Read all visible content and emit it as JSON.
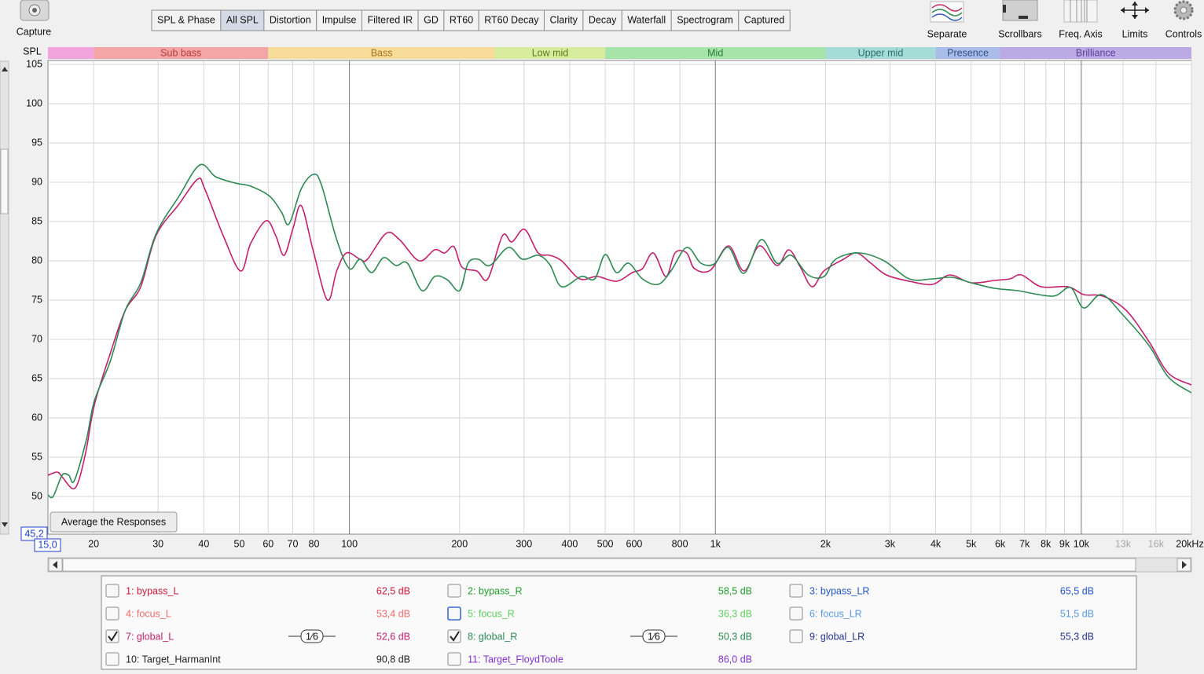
{
  "toolbar": {
    "capture": "Capture",
    "tabs": [
      "SPL & Phase",
      "All SPL",
      "Distortion",
      "Impulse",
      "Filtered IR",
      "GD",
      "RT60",
      "RT60 Decay",
      "Clarity",
      "Decay",
      "Waterfall",
      "Spectrogram",
      "Captured"
    ],
    "selected_tab": 1,
    "tools": [
      "Separate",
      "Scrollbars",
      "Freq. Axis",
      "Limits",
      "Controls"
    ]
  },
  "average_button": "Average the Responses",
  "chart_data": {
    "type": "line",
    "y_label": "SPL",
    "xscale": "log",
    "xlim": [
      15,
      20000
    ],
    "xmin_label": "15,0",
    "ylim": [
      45.2,
      105.5
    ],
    "ymin_label": "45,2",
    "grid": true,
    "yticks": [
      50,
      55,
      60,
      65,
      70,
      75,
      80,
      85,
      90,
      95,
      100,
      105
    ],
    "xticks": [
      20,
      30,
      40,
      50,
      60,
      70,
      80,
      100,
      200,
      300,
      400,
      500,
      600,
      800,
      {
        "value": 1000,
        "label": "1k"
      },
      {
        "value": 2000,
        "label": "2k"
      },
      {
        "value": 3000,
        "label": "3k"
      },
      {
        "value": 4000,
        "label": "4k"
      },
      {
        "value": 5000,
        "label": "5k"
      },
      {
        "value": 6000,
        "label": "6k"
      },
      {
        "value": 7000,
        "label": "7k"
      },
      {
        "value": 8000,
        "label": "8k"
      },
      {
        "value": 9000,
        "label": "9k"
      },
      {
        "value": 10000,
        "label": "10k"
      },
      {
        "value": 13000,
        "label": "13k",
        "dim": true
      },
      {
        "value": 16000,
        "label": "16k",
        "dim": true
      },
      {
        "value": 20000,
        "label": "20kHz"
      }
    ],
    "bands": [
      {
        "label": null,
        "from": 15,
        "to": 20,
        "color": "#f2a4dc",
        "text_color": "#a04080"
      },
      {
        "label": "Sub bass",
        "from": 20,
        "to": 60,
        "color": "#f4a6a6",
        "text_color": "#b83c3c"
      },
      {
        "label": "Bass",
        "from": 60,
        "to": 250,
        "color": "#f8dc9a",
        "text_color": "#a87020"
      },
      {
        "label": "Low mid",
        "from": 250,
        "to": 500,
        "color": "#d8eca0",
        "text_color": "#5a7a18"
      },
      {
        "label": "Mid",
        "from": 500,
        "to": 2000,
        "color": "#a6e4aa",
        "text_color": "#2a7a34"
      },
      {
        "label": "Upper mid",
        "from": 2000,
        "to": 4000,
        "color": "#a6dcd8",
        "text_color": "#2a6e6a"
      },
      {
        "label": "Presence",
        "from": 4000,
        "to": 6000,
        "color": "#aabde8",
        "text_color": "#34508a"
      },
      {
        "label": "Brilliance",
        "from": 6000,
        "to": 20000,
        "color": "#bcaae4",
        "text_color": "#5a3e96"
      }
    ],
    "series": [
      {
        "name": "1: bypass_L",
        "color": "#d01838",
        "checked": false,
        "level": {
          "value": 62.5,
          "label": "62,5 dB"
        }
      },
      {
        "name": "2: bypass_R",
        "color": "#1f9e2a",
        "checked": false,
        "level": {
          "value": 58.5,
          "label": "58,5 dB"
        }
      },
      {
        "name": "3: bypass_LR",
        "color": "#2456cc",
        "checked": false,
        "level": {
          "value": 65.5,
          "label": "65,5 dB"
        }
      },
      {
        "name": "4: focus_L",
        "color": "#f06a6a",
        "checked": false,
        "level": {
          "value": 53.4,
          "label": "53,4 dB"
        }
      },
      {
        "name": "5: focus_R",
        "color": "#5ccf5c",
        "checked": false,
        "focused": true,
        "level": {
          "value": 36.3,
          "label": "36,3 dB"
        }
      },
      {
        "name": "6: focus_LR",
        "color": "#5a98e2",
        "checked": false,
        "level": {
          "value": 51.5,
          "label": "51,5 dB"
        }
      },
      {
        "name": "7: global_L",
        "color": "#c4206e",
        "checked": true,
        "smoothing": "1⁄6",
        "level": {
          "value": 52.6,
          "label": "52,6 dB"
        },
        "x": [
          15,
          15.9,
          16.4,
          17.5,
          18.2,
          19.1,
          20.1,
          22.2,
          24.4,
          26.9,
          29.6,
          34.2,
          38.5,
          40.2,
          45.2,
          50.4,
          53.7,
          59.2,
          62.9,
          66.3,
          70.2,
          73.9,
          79.7,
          87.1,
          92.3,
          98.2,
          107,
          112,
          126,
          137,
          155,
          171,
          182,
          193,
          203,
          223,
          239,
          262,
          278,
          301,
          328,
          353,
          380,
          426,
          475,
          537,
          593,
          632,
          677,
          733,
          776,
          835,
          877,
          969,
          1086,
          1197,
          1321,
          1473,
          1587,
          1707,
          1838,
          1980,
          2240,
          2433,
          2660,
          2933,
          3390,
          3923,
          4369,
          5002,
          5793,
          6380,
          6866,
          7771,
          9211,
          10150,
          11470,
          13260,
          15320,
          17300,
          19990
        ],
        "values": [
          52.7,
          53.1,
          52.5,
          51.0,
          52.0,
          56,
          61.7,
          68.2,
          73.7,
          76.7,
          83.2,
          87.2,
          90.4,
          89.2,
          83.2,
          78.7,
          82.2,
          85.1,
          83.2,
          80.7,
          84.2,
          87.0,
          81.2,
          75.0,
          78.7,
          81.0,
          80.2,
          80.2,
          83.5,
          82.7,
          80.0,
          81.4,
          81.0,
          81.8,
          79.2,
          78.7,
          77.7,
          83.2,
          82.4,
          84.0,
          81.0,
          80.7,
          80.0,
          77.7,
          78.0,
          77.4,
          78.5,
          79.0,
          81.0,
          78.0,
          81.0,
          81.0,
          79.0,
          78.8,
          81.9,
          78.7,
          81.9,
          79.4,
          81.4,
          79.2,
          76.7,
          78.7,
          80.2,
          81.0,
          79.7,
          78.2,
          77.4,
          77.0,
          78.2,
          77.2,
          77.5,
          77.7,
          78.2,
          76.7,
          76.7,
          75.7,
          75.5,
          73.7,
          69.7,
          65.7,
          64.2
        ]
      },
      {
        "name": "8: global_R",
        "color": "#2c8a52",
        "checked": true,
        "smoothing": "1⁄6",
        "level": {
          "value": 50.3,
          "label": "50,3 dB"
        },
        "x": [
          15,
          15.5,
          16.4,
          17.1,
          17.7,
          19.1,
          20.1,
          22.2,
          24.4,
          26.9,
          29.6,
          34.2,
          39.0,
          43.1,
          48.7,
          53.7,
          60.6,
          65.2,
          68.4,
          73.9,
          79.7,
          83.8,
          92.3,
          100,
          107,
          115,
          124,
          134,
          144,
          158,
          171,
          185,
          200,
          211,
          225,
          242,
          272,
          297,
          328,
          353,
          380,
          430,
          468,
          500,
          537,
          579,
          632,
          698,
          756,
          835,
          913,
          993,
          1086,
          1197,
          1334,
          1473,
          1612,
          1793,
          1980,
          2133,
          2469,
          2890,
          3390,
          3923,
          4430,
          5002,
          5793,
          6700,
          8357,
          9340,
          10150,
          11360,
          12940,
          15320,
          17300,
          19990
        ],
        "values": [
          50.2,
          50.0,
          52.7,
          52.7,
          52.0,
          57.2,
          62.2,
          67.2,
          73.7,
          77.2,
          83.4,
          88.2,
          92.2,
          90.7,
          89.9,
          89.5,
          88.2,
          86.2,
          84.7,
          89.2,
          91.0,
          89.7,
          82.7,
          79.0,
          80.2,
          78.5,
          80.4,
          79.4,
          79.7,
          76.2,
          78.0,
          77.6,
          76.2,
          79.7,
          80.2,
          79.4,
          81.7,
          80.2,
          80.7,
          79.5,
          76.7,
          78.0,
          77.7,
          80.8,
          78.5,
          79.7,
          77.7,
          77.0,
          78.7,
          81.7,
          79.7,
          79.6,
          81.7,
          78.4,
          82.7,
          79.7,
          80.7,
          78.2,
          78.0,
          80.2,
          81.0,
          80.0,
          77.7,
          77.7,
          77.9,
          77.2,
          76.5,
          76.2,
          75.5,
          76.6,
          74.0,
          75.7,
          73.2,
          69.2,
          65.2,
          63.2
        ]
      },
      {
        "name": "9: global_LR",
        "color": "#24338e",
        "checked": false,
        "level": {
          "value": 55.3,
          "label": "55,3 dB"
        }
      },
      {
        "name": "10: Target_HarmanInt",
        "color": "#222222",
        "checked": false,
        "level": {
          "value": 90.8,
          "label": "90,8 dB"
        }
      },
      {
        "name": "11: Target_FloydToole",
        "color": "#8432d2",
        "checked": false,
        "level": {
          "value": 86.0,
          "label": "86,0 dB"
        }
      }
    ]
  }
}
